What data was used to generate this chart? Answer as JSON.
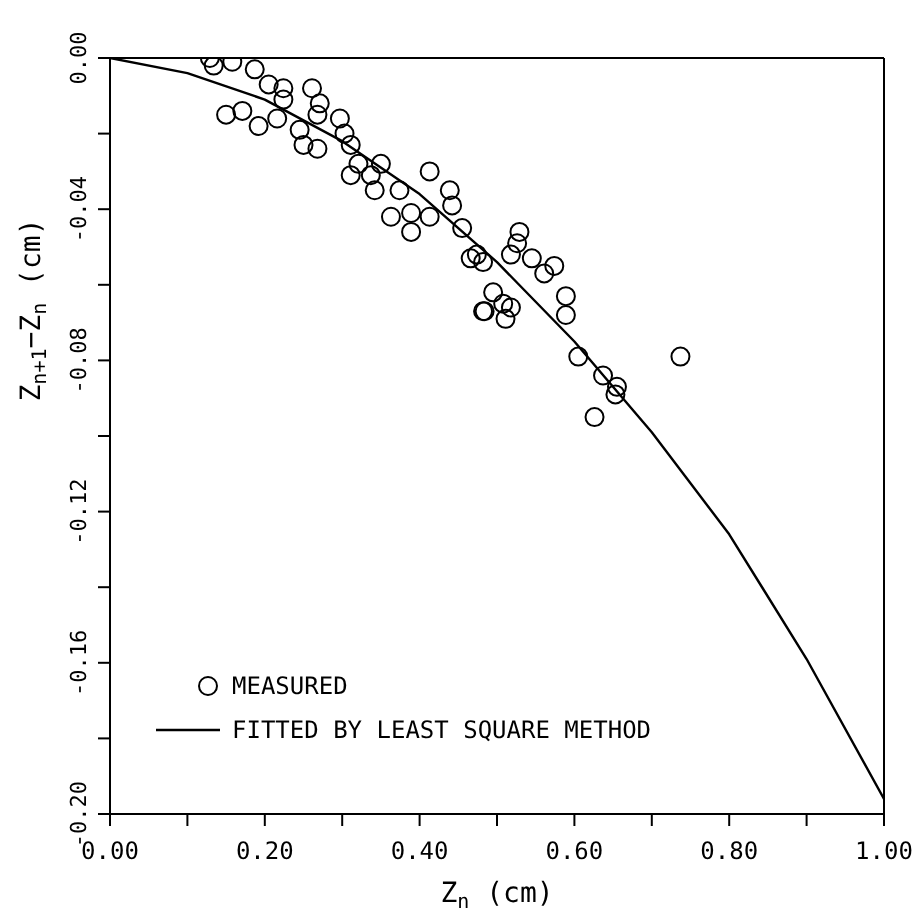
{
  "chart_data": {
    "type": "scatter",
    "xlabel": "Z$_{n}$  (cm)",
    "ylabel": "Z$_{n+1}$−Z$_{n}$  (cm)",
    "xlim": [
      0,
      1
    ],
    "ylim": [
      -0.2,
      0
    ],
    "xticks": [
      {
        "value": 0,
        "label": "0.00"
      },
      {
        "value": 0.1,
        "label": null
      },
      {
        "value": 0.2,
        "label": "0.20"
      },
      {
        "value": 0.3,
        "label": null
      },
      {
        "value": 0.4,
        "label": "0.40"
      },
      {
        "value": 0.5,
        "label": null
      },
      {
        "value": 0.6,
        "label": "0.60"
      },
      {
        "value": 0.7,
        "label": null
      },
      {
        "value": 0.8,
        "label": "0.80"
      },
      {
        "value": 0.9,
        "label": null
      },
      {
        "value": 1,
        "label": "1.00"
      }
    ],
    "yticks": [
      {
        "value": -0.2,
        "label": "-0.20"
      },
      {
        "value": -0.18,
        "label": null
      },
      {
        "value": -0.16,
        "label": "-0.16"
      },
      {
        "value": -0.14,
        "label": null
      },
      {
        "value": -0.12,
        "label": "-0.12"
      },
      {
        "value": -0.1,
        "label": null
      },
      {
        "value": -0.08,
        "label": "-0.08"
      },
      {
        "value": -0.06,
        "label": null
      },
      {
        "value": -0.04,
        "label": "-0.04"
      },
      {
        "value": -0.02,
        "label": null
      },
      {
        "value": 0,
        "label": "0.00"
      }
    ],
    "grid": false,
    "legend": "bottom left",
    "marker": "circle",
    "series": [
      {
        "name": "MEASURED",
        "type": "scatter",
        "color": "#000000",
        "x": [
          0.129,
          0.134,
          0.158,
          0.187,
          0.205,
          0.224,
          0.261,
          0.271,
          0.15,
          0.171,
          0.192,
          0.216,
          0.245,
          0.268,
          0.25,
          0.297,
          0.303,
          0.311,
          0.321,
          0.311,
          0.337,
          0.35,
          0.413,
          0.342,
          0.374,
          0.363,
          0.389,
          0.389,
          0.413,
          0.439,
          0.442,
          0.455,
          0.474,
          0.482,
          0.495,
          0.482,
          0.508,
          0.224,
          0.268,
          0.466,
          0.529,
          0.526,
          0.518,
          0.545,
          0.561,
          0.574,
          0.589,
          0.589,
          0.484,
          0.511,
          0.518,
          0.605,
          0.637,
          0.655,
          0.653,
          0.626,
          0.737
        ],
        "values": [
          0.0,
          -0.002,
          -0.001,
          -0.003,
          -0.007,
          -0.008,
          -0.008,
          -0.012,
          -0.015,
          -0.014,
          -0.018,
          -0.016,
          -0.019,
          -0.024,
          -0.023,
          -0.016,
          -0.02,
          -0.023,
          -0.028,
          -0.031,
          -0.031,
          -0.028,
          -0.03,
          -0.035,
          -0.035,
          -0.042,
          -0.041,
          -0.046,
          -0.042,
          -0.035,
          -0.039,
          -0.045,
          -0.052,
          -0.054,
          -0.062,
          -0.067,
          -0.065,
          -0.011,
          -0.015,
          -0.053,
          -0.046,
          -0.049,
          -0.052,
          -0.053,
          -0.057,
          -0.055,
          -0.063,
          -0.068,
          -0.067,
          -0.069,
          -0.066,
          -0.079,
          -0.084,
          -0.087,
          -0.089,
          -0.095,
          -0.079
        ]
      },
      {
        "name": "FITTED BY LEAST SQUARE METHOD",
        "type": "line",
        "color": "#000000",
        "line_style": "solid",
        "marker": "none",
        "x": [
          0,
          0.1,
          0.2,
          0.3,
          0.4,
          0.5,
          0.6,
          0.7,
          0.8,
          0.9,
          1.0
        ],
        "values": [
          0,
          -0.004,
          -0.011,
          -0.022,
          -0.036,
          -0.054,
          -0.075,
          -0.099,
          -0.126,
          -0.159,
          -0.196
        ]
      }
    ]
  }
}
